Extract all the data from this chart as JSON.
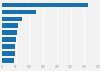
{
  "values": [
    314.0,
    125.0,
    73.0,
    58.0,
    54.0,
    51.0,
    48.0,
    46.0,
    42.0
  ],
  "bar_color": "#1a6faf",
  "background_color": "#f2f2f2",
  "xlim": [
    0,
    350
  ],
  "bar_height": 0.65,
  "grid_color": "#ffffff",
  "tick_color": "#999999"
}
